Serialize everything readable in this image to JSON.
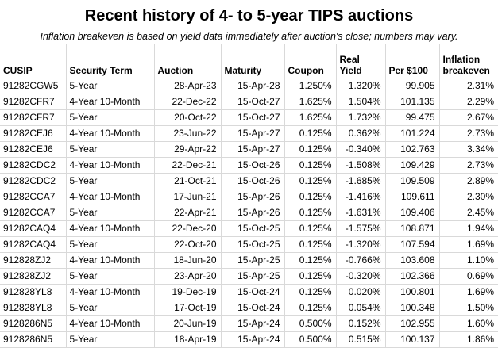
{
  "title": "Recent history of 4- to 5-year TIPS auctions",
  "subtitle": "Inflation breakeven is based on yield data immediately after auction's close; numbers may vary.",
  "colors": {
    "background": "#ffffff",
    "text": "#000000",
    "gridline": "#d9d9d9"
  },
  "chart_data": {
    "type": "table",
    "title": "Recent history of 4- to 5-year TIPS auctions",
    "columns": [
      "CUSIP",
      "Security Term",
      "Auction",
      "Maturity",
      "Coupon",
      "Real Yield",
      "Per $100",
      "Inflation breakeven"
    ],
    "rows": [
      [
        "91282CGW5",
        "5-Year",
        "28-Apr-23",
        "15-Apr-28",
        "1.250%",
        "1.320%",
        "99.905",
        "2.31%"
      ],
      [
        "91282CFR7",
        "4-Year 10-Month",
        "22-Dec-22",
        "15-Oct-27",
        "1.625%",
        "1.504%",
        "101.135",
        "2.29%"
      ],
      [
        "91282CFR7",
        "5-Year",
        "20-Oct-22",
        "15-Oct-27",
        "1.625%",
        "1.732%",
        "99.475",
        "2.67%"
      ],
      [
        "91282CEJ6",
        "4-Year 10-Month",
        "23-Jun-22",
        "15-Apr-27",
        "0.125%",
        "0.362%",
        "101.224",
        "2.73%"
      ],
      [
        "91282CEJ6",
        "5-Year",
        "29-Apr-22",
        "15-Apr-27",
        "0.125%",
        "-0.340%",
        "102.763",
        "3.34%"
      ],
      [
        "91282CDC2",
        "4-Year 10-Month",
        "22-Dec-21",
        "15-Oct-26",
        "0.125%",
        "-1.508%",
        "109.429",
        "2.73%"
      ],
      [
        "91282CDC2",
        "5-Year",
        "21-Oct-21",
        "15-Oct-26",
        "0.125%",
        "-1.685%",
        "109.509",
        "2.89%"
      ],
      [
        "91282CCA7",
        "4-Year 10-Month",
        "17-Jun-21",
        "15-Apr-26",
        "0.125%",
        "-1.416%",
        "109.611",
        "2.30%"
      ],
      [
        "91282CCA7",
        "5-Year",
        "22-Apr-21",
        "15-Apr-26",
        "0.125%",
        "-1.631%",
        "109.406",
        "2.45%"
      ],
      [
        "91282CAQ4",
        "4-Year 10-Month",
        "22-Dec-20",
        "15-Oct-25",
        "0.125%",
        "-1.575%",
        "108.871",
        "1.94%"
      ],
      [
        "91282CAQ4",
        "5-Year",
        "22-Oct-20",
        "15-Oct-25",
        "0.125%",
        "-1.320%",
        "107.594",
        "1.69%"
      ],
      [
        "912828ZJ2",
        "4-Year 10-Month",
        "18-Jun-20",
        "15-Apr-25",
        "0.125%",
        "-0.766%",
        "103.608",
        "1.10%"
      ],
      [
        "912828ZJ2",
        "5-Year",
        "23-Apr-20",
        "15-Apr-25",
        "0.125%",
        "-0.320%",
        "102.366",
        "0.69%"
      ],
      [
        "912828YL8",
        "4-Year 10-Month",
        "19-Dec-19",
        "15-Oct-24",
        "0.125%",
        "0.020%",
        "100.801",
        "1.69%"
      ],
      [
        "912828YL8",
        "5-Year",
        "17-Oct-19",
        "15-Oct-24",
        "0.125%",
        "0.054%",
        "100.348",
        "1.50%"
      ],
      [
        "9128286N5",
        "4-Year 10-Month",
        "20-Jun-19",
        "15-Apr-24",
        "0.500%",
        "0.152%",
        "102.955",
        "1.60%"
      ],
      [
        "9128286N5",
        "5-Year",
        "18-Apr-19",
        "15-Apr-24",
        "0.500%",
        "0.515%",
        "100.137",
        "1.86%"
      ]
    ]
  }
}
